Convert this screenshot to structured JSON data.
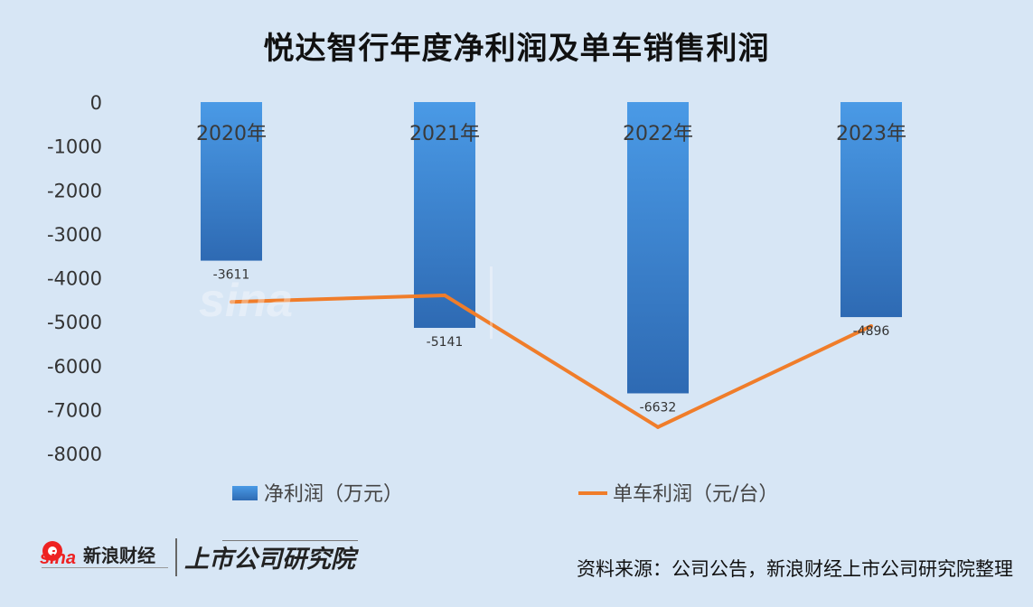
{
  "source_note": "资料来源：公司公告，新浪财经上市公司研究院整理",
  "chart_data": {
    "type": "bar+line",
    "title": "悦达智行年度净利润及单车销售利润",
    "categories": [
      "2020年",
      "2021年",
      "2022年",
      "2023年"
    ],
    "ylim": [
      -8000,
      0
    ],
    "yticks": [
      0,
      -1000,
      -2000,
      -3000,
      -4000,
      -5000,
      -6000,
      -7000,
      -8000
    ],
    "grid": false,
    "legend_position": "bottom",
    "series": [
      {
        "name": "净利润（万元）",
        "type": "bar",
        "color": "#3d7fc9",
        "values": [
          -3611,
          -5141,
          -6632,
          -4896
        ],
        "labels": [
          "-3611",
          "-5141",
          "-6632",
          "-4896"
        ]
      },
      {
        "name": "单车利润（元/台）",
        "type": "line",
        "color": "#f07d2a",
        "values": [
          -4550,
          -4400,
          -7400,
          -5100
        ]
      }
    ]
  }
}
